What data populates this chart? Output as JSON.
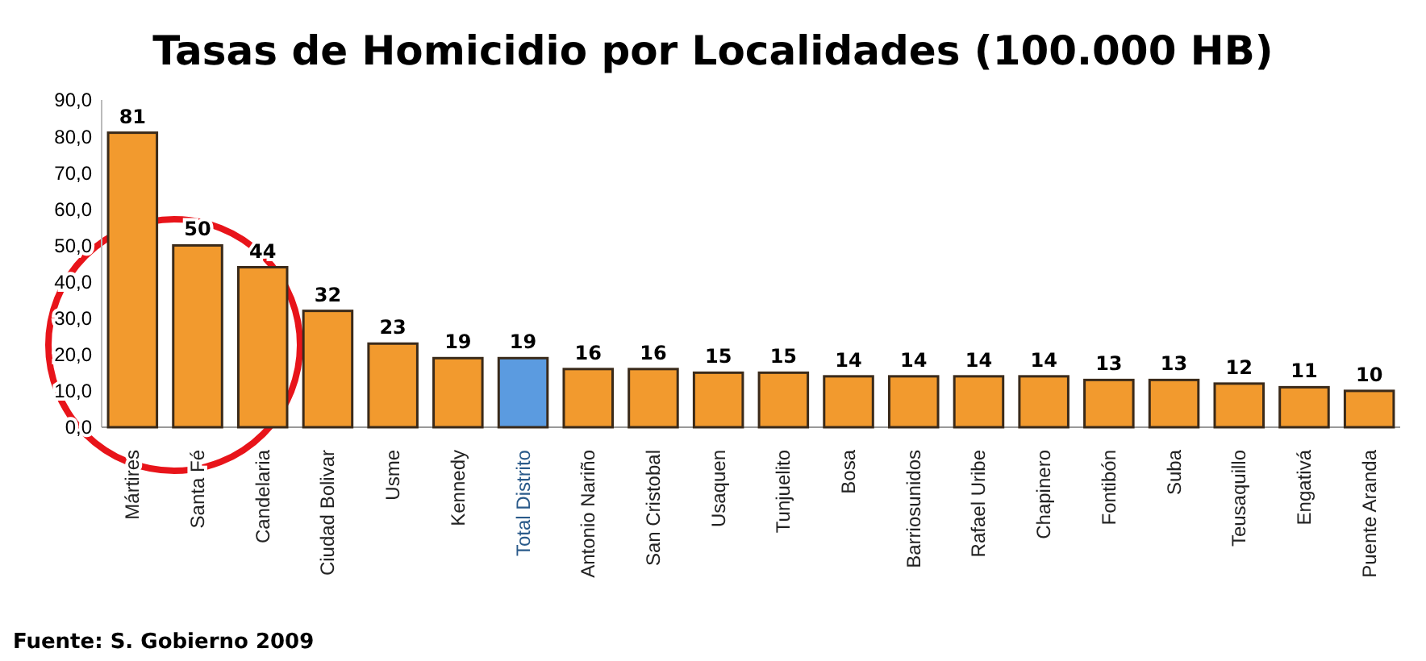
{
  "chart_data": {
    "type": "bar",
    "title": "Tasas de Homicidio por Localidades (100.000 HB)",
    "categories": [
      "Mártires",
      "Santa Fé",
      "Candelaria",
      "Ciudad Bolivar",
      "Usme",
      "Kennedy",
      "Total Distrito",
      "Antonio Nariño",
      "San Cristobal",
      "Usaquen",
      "Tunjuelito",
      "Bosa",
      "Barriosunidos",
      "Rafael Uribe",
      "Chapinero",
      "Fontibón",
      "Suba",
      "Teusaquillo",
      "Engativá",
      "Puente Aranda"
    ],
    "values": [
      81,
      50,
      44,
      32,
      23,
      19,
      19,
      16,
      16,
      15,
      15,
      14,
      14,
      14,
      14,
      13,
      13,
      12,
      11,
      10
    ],
    "colors": [
      "#f29a2e",
      "#f29a2e",
      "#f29a2e",
      "#f29a2e",
      "#f29a2e",
      "#f29a2e",
      "#5b9be0",
      "#f29a2e",
      "#f29a2e",
      "#f29a2e",
      "#f29a2e",
      "#f29a2e",
      "#f29a2e",
      "#f29a2e",
      "#f29a2e",
      "#f29a2e",
      "#f29a2e",
      "#f29a2e",
      "#f29a2e",
      "#f29a2e"
    ],
    "ylim": [
      0,
      90
    ],
    "yticks": [
      {
        "value": 0,
        "label": "0,0"
      },
      {
        "value": 10,
        "label": "10,0"
      },
      {
        "value": 20,
        "label": "20,0"
      },
      {
        "value": 30,
        "label": "30,0"
      },
      {
        "value": 40,
        "label": "40,0"
      },
      {
        "value": 50,
        "label": "50,0"
      },
      {
        "value": 60,
        "label": "60,0"
      },
      {
        "value": 70,
        "label": "70,0"
      },
      {
        "value": 80,
        "label": "80,0"
      },
      {
        "value": 90,
        "label": "90,0"
      }
    ],
    "data_labels": true,
    "annotations": [
      "Fuente: S. Gobierno 2009"
    ]
  }
}
